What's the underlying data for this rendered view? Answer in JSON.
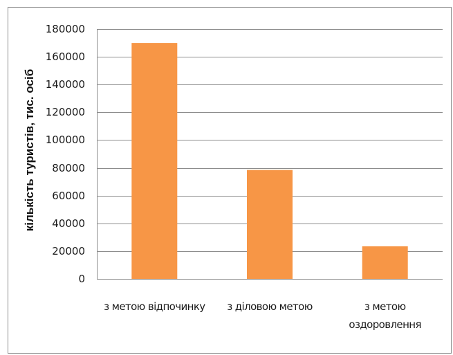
{
  "chart_data": {
    "type": "bar",
    "title": "",
    "xlabel": "",
    "ylabel": "кількість туристів, тис. осіб",
    "categories": [
      [
        "з метою відпочинку"
      ],
      [
        "з діловою метою"
      ],
      [
        "з метою",
        "оздоровлення"
      ]
    ],
    "series": [
      {
        "values": [
          170000,
          78500,
          23500
        ],
        "color": "#f79646"
      }
    ],
    "ylim": [
      0,
      180000
    ],
    "yticks": [
      0,
      20000,
      40000,
      60000,
      80000,
      100000,
      120000,
      140000,
      160000,
      180000
    ],
    "grid": true,
    "legend": "none"
  }
}
